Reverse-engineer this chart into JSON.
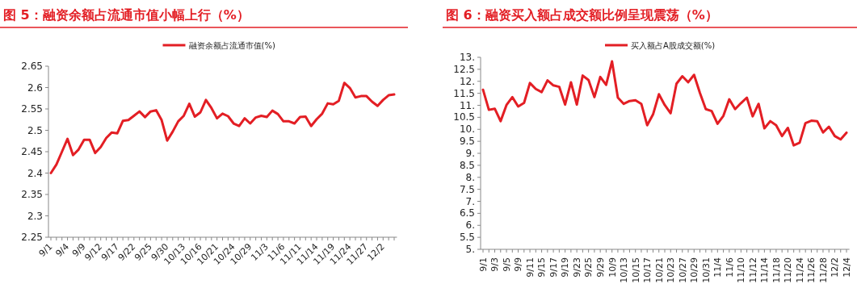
{
  "chart_data": [
    {
      "type": "line",
      "title": "图 5：融资余额占流通市值小幅上行（%）",
      "legend": "top",
      "categories": [
        "9/1",
        null,
        null,
        "9/4",
        null,
        null,
        "9/9",
        null,
        null,
        "9/12",
        null,
        null,
        "9/17",
        null,
        null,
        "9/22",
        null,
        null,
        "9/25",
        null,
        null,
        "9/30",
        null,
        null,
        "10/13",
        null,
        null,
        "10/16",
        null,
        null,
        "10/21",
        null,
        null,
        "10/24",
        null,
        null,
        "10/29",
        null,
        null,
        "11/3",
        null,
        null,
        "11/6",
        null,
        null,
        "11/11",
        null,
        null,
        "11/14",
        null,
        null,
        "11/19",
        null,
        null,
        "11/24",
        null,
        null,
        "11/27",
        null,
        null,
        "12/2",
        null,
        null
      ],
      "series": [
        {
          "name": "融资余额占流通市值(%)",
          "color": "#e31e24",
          "values": [
            2.4,
            2.42,
            2.45,
            2.48,
            2.442,
            2.455,
            2.478,
            2.478,
            2.447,
            2.461,
            2.482,
            2.495,
            2.493,
            2.522,
            2.524,
            2.534,
            2.544,
            2.531,
            2.544,
            2.547,
            2.524,
            2.476,
            2.497,
            2.521,
            2.534,
            2.562,
            2.532,
            2.542,
            2.571,
            2.552,
            2.528,
            2.539,
            2.533,
            2.516,
            2.51,
            2.528,
            2.516,
            2.53,
            2.534,
            2.531,
            2.546,
            2.538,
            2.521,
            2.521,
            2.516,
            2.531,
            2.532,
            2.51,
            2.526,
            2.539,
            2.563,
            2.561,
            2.569,
            2.611,
            2.599,
            2.577,
            2.58,
            2.58,
            2.567,
            2.557,
            2.571,
            2.582,
            2.584
          ]
        }
      ],
      "ylim": [
        2.25,
        2.65
      ],
      "yticks": [
        2.25,
        2.3,
        2.35,
        2.4,
        2.45,
        2.5,
        2.55,
        2.6,
        2.65
      ]
    },
    {
      "type": "line",
      "title": "图 6：融资买入额占成交额比例呈现震荡（%）",
      "legend": "top",
      "categories": [
        "9/1",
        null,
        "9/3",
        null,
        "9/5",
        null,
        "9/9",
        null,
        "9/11",
        null,
        "9/15",
        null,
        "9/17",
        null,
        "9/19",
        null,
        "9/23",
        null,
        "9/25",
        null,
        "9/29",
        null,
        "10/9",
        null,
        "10/13",
        null,
        "10/15",
        null,
        "10/17",
        null,
        "10/21",
        null,
        "10/23",
        null,
        "10/27",
        null,
        "10/29",
        null,
        "10/31",
        null,
        "11/4",
        null,
        "11/6",
        null,
        "11/10",
        null,
        "11/12",
        null,
        "11/14",
        null,
        "11/18",
        null,
        "11/20",
        null,
        "11/24",
        null,
        "11/26",
        null,
        "11/28",
        null,
        "12/2",
        null,
        "12/4"
      ],
      "series": [
        {
          "name": "买入额占A股成交额(%)",
          "color": "#e31e24",
          "values": [
            11.65,
            10.81,
            10.86,
            10.34,
            11.01,
            11.34,
            10.95,
            11.1,
            11.93,
            11.68,
            11.55,
            12.04,
            11.83,
            11.77,
            11.03,
            11.96,
            11.03,
            12.24,
            12.05,
            11.34,
            12.18,
            11.85,
            12.83,
            11.32,
            11.06,
            11.18,
            11.21,
            11.06,
            10.17,
            10.62,
            11.46,
            11.01,
            10.67,
            11.9,
            12.21,
            11.96,
            12.27,
            11.51,
            10.84,
            10.76,
            10.23,
            10.56,
            11.25,
            10.84,
            11.09,
            11.32,
            10.54,
            11.06,
            10.04,
            10.34,
            10.17,
            9.72,
            10.06,
            9.33,
            9.44,
            10.26,
            10.36,
            10.34,
            9.87,
            10.11,
            9.72,
            9.58,
            9.86
          ]
        }
      ],
      "ylim": [
        5,
        13
      ],
      "yticks": [
        {
          "value": 5,
          "label": "5."
        },
        5.5,
        {
          "value": 6,
          "label": "6."
        },
        6.5,
        {
          "value": 7,
          "label": "7."
        },
        7.5,
        {
          "value": 8,
          "label": "8."
        },
        8.5,
        {
          "value": 9,
          "label": "9."
        },
        9.5,
        {
          "value": 10,
          "label": "10."
        },
        10.5,
        {
          "value": 11,
          "label": "11."
        },
        11.5,
        {
          "value": 12,
          "label": "12."
        },
        12.5,
        {
          "value": 13,
          "label": "13."
        }
      ]
    }
  ]
}
